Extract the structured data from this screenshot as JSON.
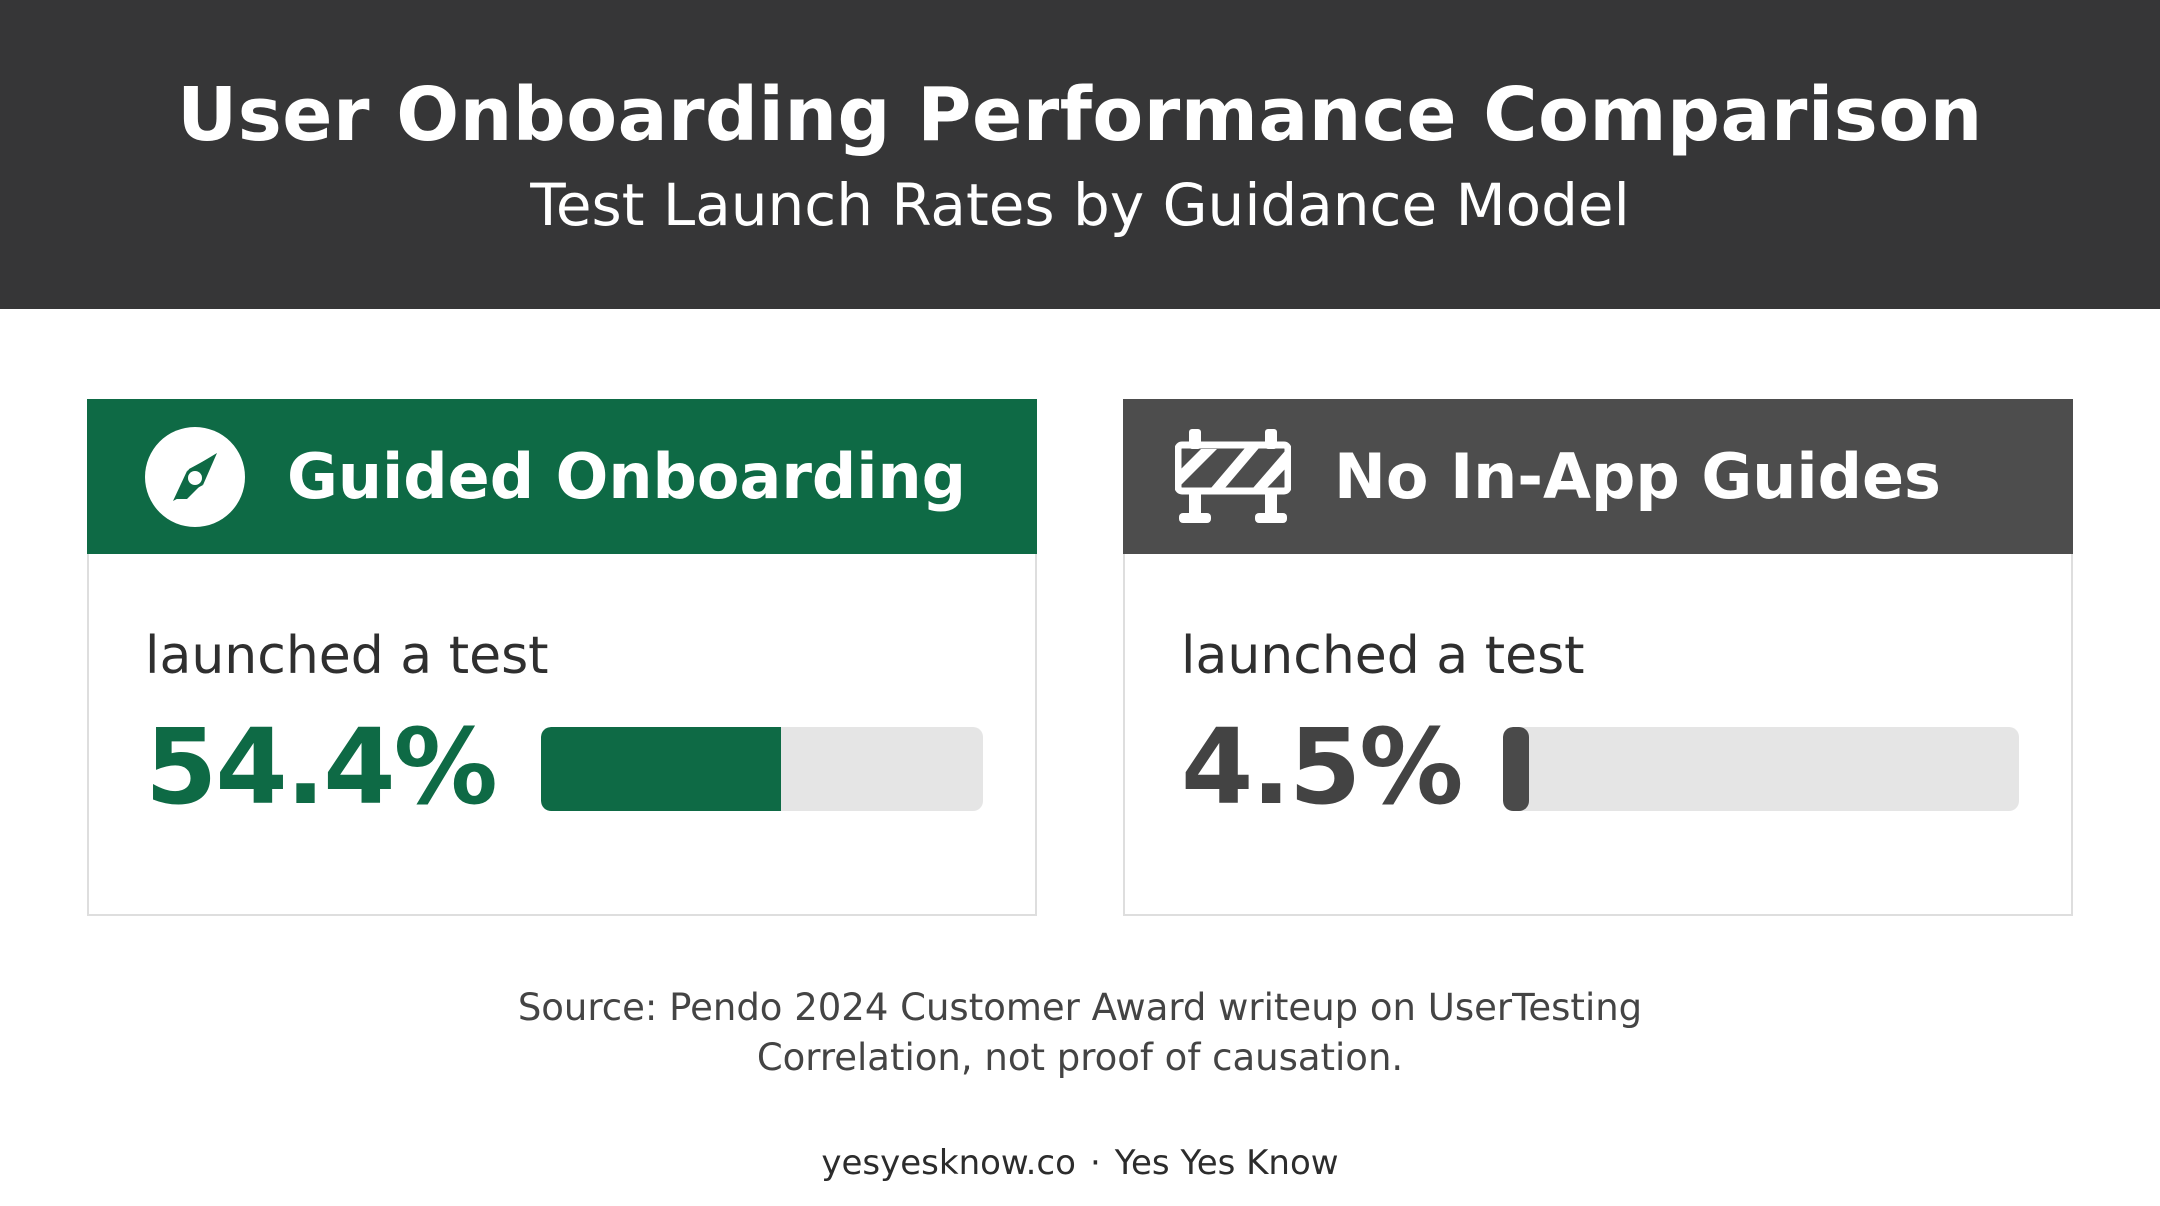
{
  "header": {
    "title": "User Onboarding Performance Comparison",
    "subtitle": "Test Launch Rates by Guidance Model"
  },
  "cards": [
    {
      "title": "Guided Onboarding",
      "icon": "compass-icon",
      "metric_label": "launched a test",
      "metric_value": "54.4%",
      "bar_fraction": 0.544,
      "accent_color": "#0e6a45"
    },
    {
      "title": "No In-App Guides",
      "icon": "roadblock-barrier-icon",
      "metric_label": "launched a test",
      "metric_value": "4.5%",
      "bar_fraction": 0.045,
      "accent_color": "#4d4d4d"
    }
  ],
  "source": {
    "line1": "Source: Pendo 2024 Customer Award writeup on UserTesting",
    "line2": "Correlation, not proof of causation."
  },
  "footer": {
    "site": "yesyesknow.co",
    "separator": "·",
    "brand": "Yes Yes Know"
  },
  "colors": {
    "header_bg": "#363637",
    "guided_green": "#0e6a45",
    "no_guides_gray": "#4d4d4d",
    "track_gray": "#e5e5e5"
  }
}
